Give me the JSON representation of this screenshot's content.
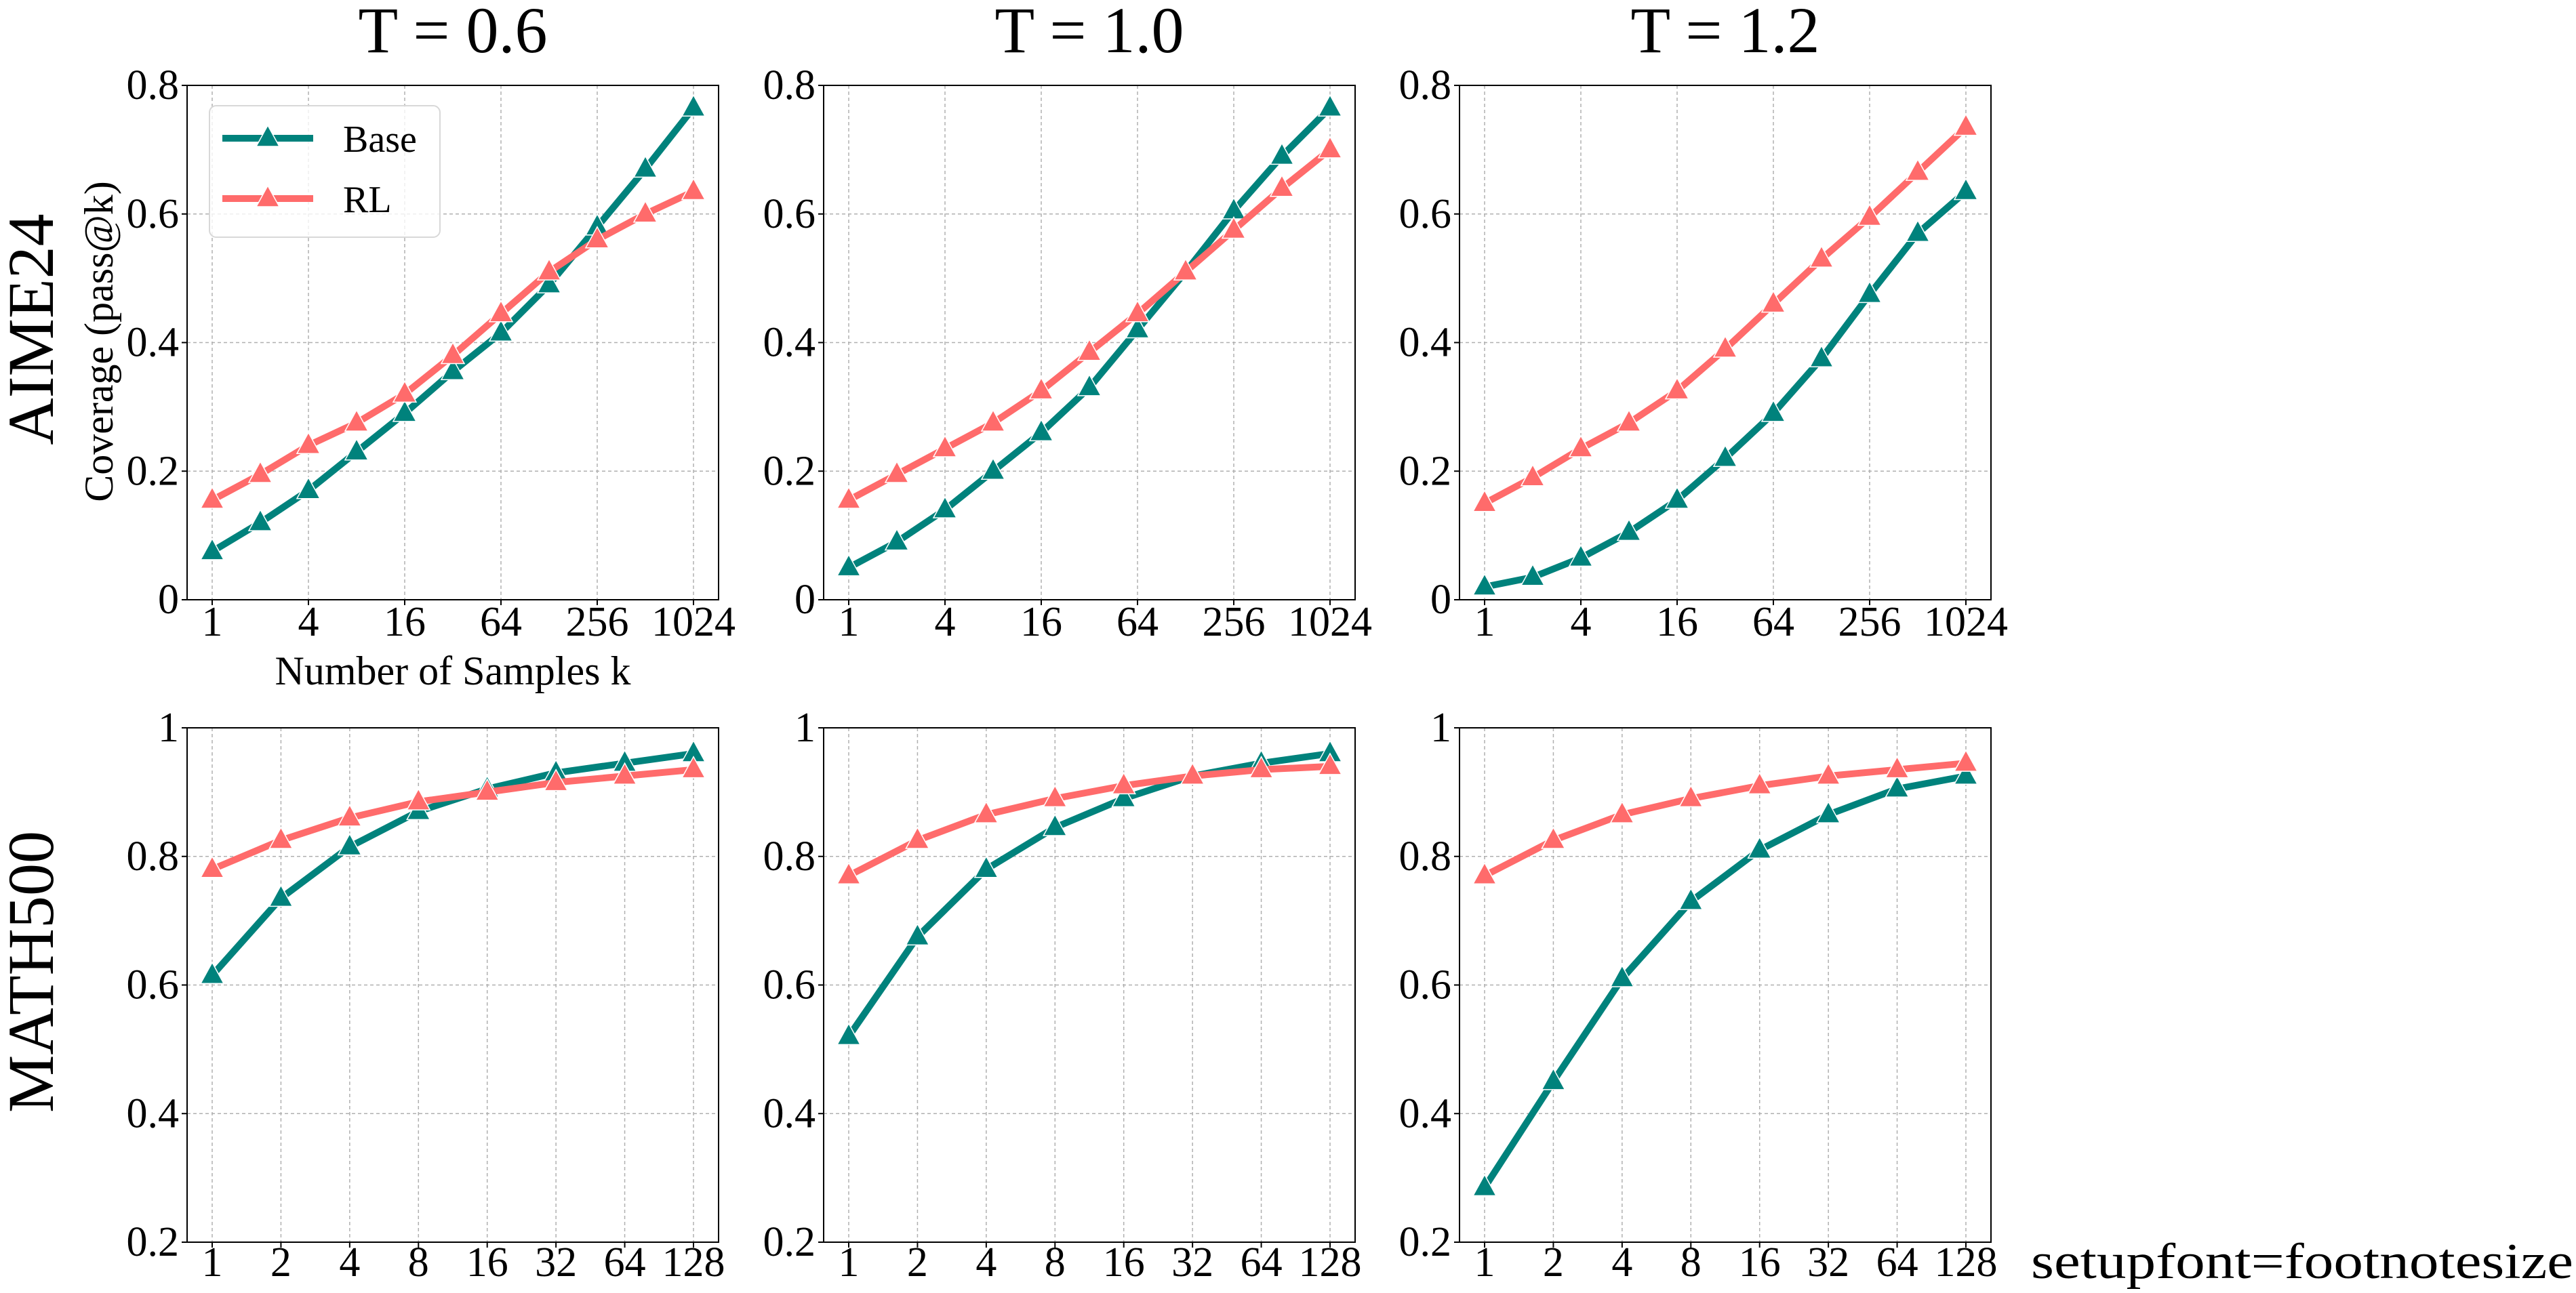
{
  "colors": {
    "Base": "#00827C",
    "RL": "#FF6B6B"
  },
  "marker": "triangle-up",
  "legend": {
    "position": "upper-left",
    "entries": [
      "Base",
      "RL"
    ]
  },
  "row_labels": [
    "AIME24",
    "MATH500"
  ],
  "footer_text": "setupfont=footnotesize",
  "chart_data": [
    {
      "type": "line",
      "title": "T = 0.6",
      "row_label": "AIME24",
      "xlabel": "Number of Samples k",
      "ylabel": "Coverage (pass@k)",
      "xscale": "log2",
      "xlim": [
        1,
        1024
      ],
      "ylim": [
        0,
        0.8
      ],
      "grid": true,
      "xticks": [
        "1",
        "4",
        "16",
        "64",
        "256",
        "1024"
      ],
      "yticks": [
        "0",
        "0.2",
        "0.4",
        "0.6",
        "0.8"
      ],
      "x": [
        1,
        2,
        4,
        8,
        16,
        32,
        64,
        128,
        256,
        512,
        1024
      ],
      "series": [
        {
          "name": "Base",
          "values": [
            0.075,
            0.12,
            0.17,
            0.23,
            0.29,
            0.355,
            0.415,
            0.49,
            0.58,
            0.67,
            0.765
          ]
        },
        {
          "name": "RL",
          "values": [
            0.155,
            0.195,
            0.24,
            0.275,
            0.32,
            0.38,
            0.445,
            0.51,
            0.56,
            0.6,
            0.635
          ]
        }
      ]
    },
    {
      "type": "line",
      "title": "T = 1.0",
      "xscale": "log2",
      "xlim": [
        1,
        1024
      ],
      "ylim": [
        0,
        0.8
      ],
      "grid": true,
      "xticks": [
        "1",
        "4",
        "16",
        "64",
        "256",
        "1024"
      ],
      "yticks": [
        "0",
        "0.2",
        "0.4",
        "0.6",
        "0.8"
      ],
      "x": [
        1,
        2,
        4,
        8,
        16,
        32,
        64,
        128,
        256,
        512,
        1024
      ],
      "series": [
        {
          "name": "Base",
          "values": [
            0.05,
            0.09,
            0.14,
            0.2,
            0.26,
            0.33,
            0.42,
            0.51,
            0.605,
            0.69,
            0.765
          ]
        },
        {
          "name": "RL",
          "values": [
            0.155,
            0.195,
            0.235,
            0.275,
            0.325,
            0.385,
            0.445,
            0.51,
            0.575,
            0.64,
            0.7
          ]
        }
      ]
    },
    {
      "type": "line",
      "title": "T = 1.2",
      "xscale": "log2",
      "xlim": [
        1,
        1024
      ],
      "ylim": [
        0,
        0.8
      ],
      "grid": true,
      "xticks": [
        "1",
        "4",
        "16",
        "64",
        "256",
        "1024"
      ],
      "yticks": [
        "0",
        "0.2",
        "0.4",
        "0.6",
        "0.8"
      ],
      "x": [
        1,
        2,
        4,
        8,
        16,
        32,
        64,
        128,
        256,
        512,
        1024
      ],
      "series": [
        {
          "name": "Base",
          "values": [
            0.02,
            0.035,
            0.065,
            0.105,
            0.155,
            0.22,
            0.29,
            0.375,
            0.475,
            0.57,
            0.635
          ]
        },
        {
          "name": "RL",
          "values": [
            0.15,
            0.19,
            0.235,
            0.275,
            0.325,
            0.39,
            0.46,
            0.53,
            0.595,
            0.665,
            0.735
          ]
        }
      ]
    },
    {
      "type": "line",
      "row_label": "MATH500",
      "xscale": "log2",
      "xlim": [
        1,
        128
      ],
      "ylim": [
        0.2,
        1
      ],
      "grid": true,
      "xticks": [
        "1",
        "2",
        "4",
        "8",
        "16",
        "32",
        "64",
        "128"
      ],
      "yticks": [
        "0.2",
        "0.4",
        "0.6",
        "0.8",
        "1"
      ],
      "x": [
        1,
        2,
        4,
        8,
        16,
        32,
        64,
        128
      ],
      "series": [
        {
          "name": "Base",
          "values": [
            0.615,
            0.735,
            0.815,
            0.87,
            0.905,
            0.93,
            0.945,
            0.96
          ]
        },
        {
          "name": "RL",
          "values": [
            0.78,
            0.825,
            0.86,
            0.885,
            0.9,
            0.915,
            0.925,
            0.935
          ]
        }
      ]
    },
    {
      "type": "line",
      "xscale": "log2",
      "xlim": [
        1,
        128
      ],
      "ylim": [
        0.2,
        1
      ],
      "grid": true,
      "xticks": [
        "1",
        "2",
        "4",
        "8",
        "16",
        "32",
        "64",
        "128"
      ],
      "yticks": [
        "0.2",
        "0.4",
        "0.6",
        "0.8",
        "1"
      ],
      "x": [
        1,
        2,
        4,
        8,
        16,
        32,
        64,
        128
      ],
      "series": [
        {
          "name": "Base",
          "values": [
            0.52,
            0.675,
            0.78,
            0.845,
            0.89,
            0.925,
            0.945,
            0.96
          ]
        },
        {
          "name": "RL",
          "values": [
            0.77,
            0.825,
            0.865,
            0.89,
            0.91,
            0.925,
            0.935,
            0.94
          ]
        }
      ]
    },
    {
      "type": "line",
      "xscale": "log2",
      "xlim": [
        1,
        128
      ],
      "ylim": [
        0.2,
        1
      ],
      "grid": true,
      "xticks": [
        "1",
        "2",
        "4",
        "8",
        "16",
        "32",
        "64",
        "128"
      ],
      "yticks": [
        "0.2",
        "0.4",
        "0.6",
        "0.8",
        "1"
      ],
      "x": [
        1,
        2,
        4,
        8,
        16,
        32,
        64,
        128
      ],
      "series": [
        {
          "name": "Base",
          "values": [
            0.285,
            0.45,
            0.61,
            0.73,
            0.81,
            0.865,
            0.905,
            0.925
          ]
        },
        {
          "name": "RL",
          "values": [
            0.77,
            0.825,
            0.865,
            0.89,
            0.91,
            0.925,
            0.935,
            0.945
          ]
        }
      ]
    }
  ]
}
